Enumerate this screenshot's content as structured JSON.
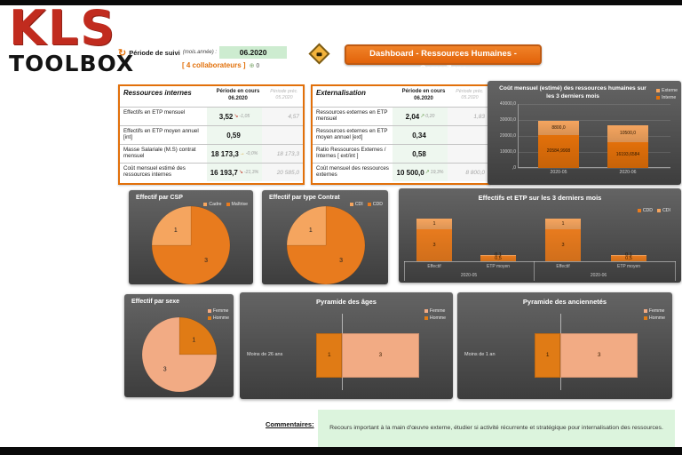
{
  "page": {
    "logo_line1": "KLS",
    "logo_line2": "TOOLBOX",
    "periode_label": "Période de suivi",
    "periode_sub": "(mois.année) :",
    "periode_value": "06.2020",
    "collaborateurs": "[  4 collaborateurs  ]",
    "collab_delta": "0",
    "title": "Dashboard - Ressources Humaines - GamerZone"
  },
  "tables": {
    "internes": {
      "title": "Ressources internes",
      "col_current": "Période en cours",
      "col_current_sub": "06.2020",
      "col_prev": "Période préc.",
      "col_prev_sub": "05.2020",
      "rows": [
        {
          "label": "Effectifs en ETP mensuel",
          "value": "3,52",
          "delta": "-1,05",
          "delta_dir": "down",
          "prev": "4,57"
        },
        {
          "label": "Effectifs en ETP moyen annuel [int]",
          "value": "0,59",
          "delta": "",
          "delta_dir": "",
          "prev": ""
        },
        {
          "label": "Masse Salariale (M.S) contrat mensuel",
          "value": "18 173,3",
          "delta": "-0,0%",
          "delta_dir": "flat",
          "prev": "18 173,3"
        },
        {
          "label": "Coût mensuel estimé des ressources internes",
          "value": "16 193,7",
          "delta": "-21,3%",
          "delta_dir": "down",
          "prev": "20 585,0"
        }
      ]
    },
    "externes": {
      "title": "Externalisation",
      "col_current": "Période en cours",
      "col_current_sub": "06.2020",
      "col_prev": "Période préc.",
      "col_prev_sub": "05.2020",
      "rows": [
        {
          "label": "Ressources externes en ETP mensuel",
          "value": "2,04",
          "delta": "0,20",
          "delta_dir": "up",
          "prev": "1,83"
        },
        {
          "label": "Ressources externes en ETP moyen annuel [ext]",
          "value": "0,34",
          "delta": "",
          "delta_dir": "",
          "prev": ""
        },
        {
          "label": "Ratio Ressources Externes / Internes [ ext/int ]",
          "value": "0,58",
          "delta": "",
          "delta_dir": "",
          "prev": ""
        },
        {
          "label": "Coût mensuel des ressources externes",
          "value": "10 500,0",
          "delta": "19,3%",
          "delta_dir": "up",
          "prev": "8 800,0"
        }
      ]
    }
  },
  "commentaires": {
    "label": "Commentaires:",
    "text": "Recours important à la main d'œuvre externe, étudier si activité récurrente et stratégique  pour internalisation des ressources."
  },
  "colors": {
    "accent": "#e2700a",
    "orange_light": "#f5a55f",
    "orange_dark": "#e87b1e",
    "peach_light": "#f2ab84",
    "peach_dark": "#e07b15",
    "delta_down": "#c23a2b",
    "delta_up": "#6da153",
    "delta_flat": "#d6a31f"
  },
  "chart_data": [
    {
      "id": "cost",
      "type": "bar",
      "stacked": true,
      "title": "Coût mensuel (estimé) des ressources humaines sur les 3 derniers mois",
      "categories": [
        "2020-05",
        "2020-06"
      ],
      "series": [
        {
          "name": "Interne",
          "color": "#e2700a",
          "values": [
            20584.9908,
            16193.6584
          ],
          "labels": [
            "20584,9908",
            "16193,6584"
          ]
        },
        {
          "name": "Externe",
          "color": "#f5a55f",
          "values": [
            8800.0,
            10500.0
          ],
          "labels": [
            "8800,0",
            "10500,0"
          ]
        }
      ],
      "legend": [
        {
          "label": "Externe",
          "color": "#f5a55f"
        },
        {
          "label": "Interne",
          "color": "#e2700a"
        }
      ],
      "ylim": [
        0,
        40000
      ],
      "yticks": [
        {
          "v": 0,
          "t": ",0"
        },
        {
          "v": 10000,
          "t": "10000,0"
        },
        {
          "v": 20000,
          "t": "20000,0"
        },
        {
          "v": 30000,
          "t": "30000,0"
        },
        {
          "v": 40000,
          "t": "40000,0"
        }
      ],
      "legend_position": "right",
      "grid": true
    },
    {
      "id": "csp",
      "type": "pie",
      "title": "Effectif par CSP",
      "slices": [
        {
          "label": "Cadre",
          "value": 1,
          "color": "#f5a55f"
        },
        {
          "label": "Maîtrise",
          "value": 3,
          "color": "#e87b1e"
        }
      ],
      "legend_position": "top-right"
    },
    {
      "id": "contrat",
      "type": "pie",
      "title": "Effectif par type Contrat",
      "slices": [
        {
          "label": "CDI",
          "value": 1,
          "color": "#f5a55f"
        },
        {
          "label": "CDD",
          "value": 3,
          "color": "#e87b1e"
        }
      ],
      "legend_position": "top-right"
    },
    {
      "id": "etp",
      "type": "bar",
      "stacked": true,
      "title": "Effectifs et ETP sur les 3 derniers mois",
      "groups": [
        {
          "label": "2020-05",
          "categories": [
            "Effectif",
            "ETP moyen"
          ]
        },
        {
          "label": "2020-06",
          "categories": [
            "Effectif",
            "ETP moyen"
          ]
        }
      ],
      "series": [
        {
          "name": "CDD",
          "color": "#e87b1e",
          "values": [
            3,
            0.5,
            3,
            0.5
          ],
          "labels": [
            "3",
            "0,5",
            "3",
            "0,5"
          ]
        },
        {
          "name": "CDI",
          "color": "#f5a55f",
          "values": [
            1,
            0.1,
            1,
            0.1
          ],
          "labels": [
            "1",
            "0,1",
            "1",
            "0,1"
          ]
        }
      ],
      "legend": [
        {
          "label": "CDD",
          "color": "#e87b1e"
        },
        {
          "label": "CDI",
          "color": "#f5a55f"
        }
      ],
      "ylim": [
        0,
        4.5
      ],
      "legend_position": "right"
    },
    {
      "id": "sexe",
      "type": "pie",
      "title": "Effectif par sexe",
      "slices": [
        {
          "label": "Femme",
          "value": 3,
          "color": "#f2ab84"
        },
        {
          "label": "Homme",
          "value": 1,
          "color": "#e07b15"
        }
      ],
      "legend_position": "right-stack"
    },
    {
      "id": "ages",
      "type": "bar",
      "orientation": "horizontal-pyramid",
      "title": "Pyramide des âges",
      "category": "Moins de 26 ans",
      "left": {
        "name": "Homme",
        "value": 1,
        "label": "1",
        "color": "#e07b15"
      },
      "right": {
        "name": "Femme",
        "value": 3,
        "label": "3",
        "color": "#f2ab84"
      },
      "legend": [
        {
          "label": "Femme",
          "color": "#f2ab84"
        },
        {
          "label": "Homme",
          "color": "#e07b15"
        }
      ]
    },
    {
      "id": "anciennetes",
      "type": "bar",
      "orientation": "horizontal-pyramid",
      "title": "Pyramide des anciennetés",
      "category": "Moins de 1 an",
      "left": {
        "name": "Homme",
        "value": 1,
        "label": "1",
        "color": "#e07b15"
      },
      "right": {
        "name": "Femme",
        "value": 3,
        "label": "3",
        "color": "#f2ab84"
      },
      "legend": [
        {
          "label": "Femme",
          "color": "#f2ab84"
        },
        {
          "label": "Homme",
          "color": "#e07b15"
        }
      ]
    }
  ]
}
